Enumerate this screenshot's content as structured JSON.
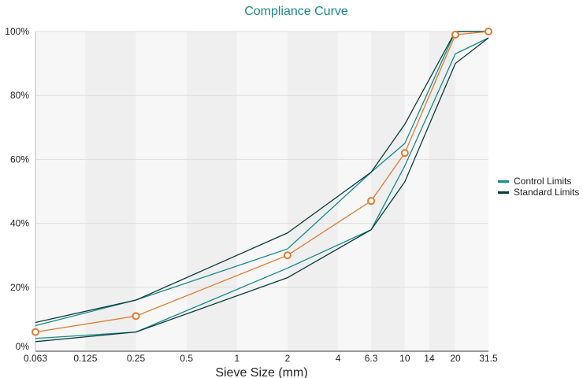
{
  "chart_data": {
    "type": "line",
    "title": "Compliance Curve",
    "xlabel": "Sieve Size (mm)",
    "ylabel": "",
    "x_scale": "log",
    "x_ticks": [
      "0.063",
      "0.125",
      "0.25",
      "0.5",
      "1",
      "2",
      "4",
      "6.3",
      "10",
      "14",
      "20",
      "31.5"
    ],
    "y_ticks": [
      "0%",
      "20%",
      "40%",
      "60%",
      "80%",
      "100%"
    ],
    "ylim": [
      0,
      100
    ],
    "grid": true,
    "legend_position": "right",
    "x": [
      0.063,
      0.25,
      2,
      6.3,
      10,
      20,
      31.5
    ],
    "series": [
      {
        "name": "Control Limits",
        "color": "#138a8a",
        "values": [
          8,
          16,
          32,
          56,
          65,
          100,
          100
        ]
      },
      {
        "color": "#138a8a",
        "values": [
          4,
          6,
          26,
          38,
          58,
          93,
          98
        ]
      },
      {
        "name": "Standard Limits",
        "color": "#0d3b3b",
        "values": [
          9,
          16,
          37,
          56,
          71,
          100,
          100
        ]
      },
      {
        "color": "#0d3b3b",
        "values": [
          3,
          6,
          23,
          38,
          53,
          90,
          98
        ]
      },
      {
        "color": "#e07b30",
        "markers": true,
        "values": [
          6,
          11,
          30,
          47,
          62,
          99,
          100
        ]
      }
    ],
    "legend": [
      {
        "label": "Control Limits",
        "color": "#138a8a"
      },
      {
        "label": "Standard Limits",
        "color": "#0d3b3b"
      }
    ]
  }
}
